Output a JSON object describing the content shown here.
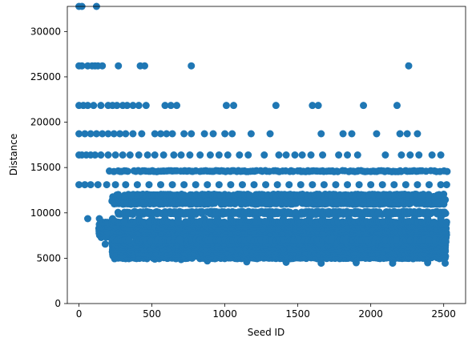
{
  "colors": {
    "marker": "#1f77b4",
    "axes": "#000000",
    "background": "#ffffff"
  },
  "chart_data": {
    "type": "scatter",
    "title": "",
    "xlabel": "Seed ID",
    "ylabel": "Distance",
    "xlim": [
      -80,
      2650
    ],
    "ylim": [
      0,
      32768
    ],
    "x_ticks": [
      0,
      500,
      1000,
      1500,
      2000,
      2500
    ],
    "y_ticks": [
      0,
      5000,
      10000,
      15000,
      20000,
      25000,
      30000
    ],
    "grid": false,
    "legend": "none",
    "series": [
      {
        "seed_id_range": [
          0,
          2520
        ],
        "points": [
          [
            0,
            32768
          ],
          [
            20,
            32768
          ],
          [
            120,
            32768
          ],
          [
            0,
            26214
          ],
          [
            20,
            26214
          ],
          [
            60,
            26214
          ],
          [
            90,
            26214
          ],
          [
            110,
            26214
          ],
          [
            130,
            26214
          ],
          [
            160,
            26214
          ],
          [
            270,
            26214
          ],
          [
            420,
            26214
          ],
          [
            450,
            26214
          ],
          [
            770,
            26214
          ],
          [
            2260,
            26214
          ],
          [
            0,
            21845
          ],
          [
            30,
            21845
          ],
          [
            60,
            21845
          ],
          [
            100,
            21845
          ],
          [
            150,
            21845
          ],
          [
            200,
            21845
          ],
          [
            230,
            21845
          ],
          [
            260,
            21845
          ],
          [
            300,
            21845
          ],
          [
            330,
            21845
          ],
          [
            370,
            21845
          ],
          [
            410,
            21845
          ],
          [
            460,
            21845
          ],
          [
            590,
            21845
          ],
          [
            630,
            21845
          ],
          [
            670,
            21845
          ],
          [
            1010,
            21845
          ],
          [
            1060,
            21845
          ],
          [
            1350,
            21845
          ],
          [
            1600,
            21845
          ],
          [
            1640,
            21845
          ],
          [
            1950,
            21845
          ],
          [
            2180,
            21845
          ],
          [
            0,
            18725
          ],
          [
            40,
            18725
          ],
          [
            80,
            18725
          ],
          [
            120,
            18725
          ],
          [
            160,
            18725
          ],
          [
            200,
            18725
          ],
          [
            240,
            18725
          ],
          [
            280,
            18725
          ],
          [
            320,
            18725
          ],
          [
            370,
            18725
          ],
          [
            430,
            18725
          ],
          [
            520,
            18725
          ],
          [
            560,
            18725
          ],
          [
            600,
            18725
          ],
          [
            640,
            18725
          ],
          [
            720,
            18725
          ],
          [
            770,
            18725
          ],
          [
            860,
            18725
          ],
          [
            920,
            18725
          ],
          [
            1000,
            18725
          ],
          [
            1050,
            18725
          ],
          [
            1180,
            18725
          ],
          [
            1310,
            18725
          ],
          [
            1660,
            18725
          ],
          [
            1810,
            18725
          ],
          [
            1870,
            18725
          ],
          [
            2040,
            18725
          ],
          [
            2200,
            18725
          ],
          [
            2250,
            18725
          ],
          [
            2320,
            18725
          ],
          [
            0,
            16384
          ],
          [
            20,
            16384
          ],
          [
            50,
            16384
          ],
          [
            80,
            16384
          ],
          [
            110,
            16384
          ],
          [
            150,
            16384
          ],
          [
            200,
            16384
          ],
          [
            250,
            16384
          ],
          [
            300,
            16384
          ],
          [
            350,
            16384
          ],
          [
            410,
            16384
          ],
          [
            470,
            16384
          ],
          [
            520,
            16384
          ],
          [
            580,
            16384
          ],
          [
            650,
            16384
          ],
          [
            700,
            16384
          ],
          [
            760,
            16384
          ],
          [
            830,
            16384
          ],
          [
            900,
            16384
          ],
          [
            960,
            16384
          ],
          [
            1020,
            16384
          ],
          [
            1100,
            16384
          ],
          [
            1160,
            16384
          ],
          [
            1270,
            16384
          ],
          [
            1370,
            16384
          ],
          [
            1420,
            16384
          ],
          [
            1480,
            16384
          ],
          [
            1530,
            16384
          ],
          [
            1590,
            16384
          ],
          [
            1670,
            16384
          ],
          [
            1780,
            16384
          ],
          [
            1840,
            16384
          ],
          [
            1910,
            16384
          ],
          [
            2100,
            16384
          ],
          [
            2210,
            16384
          ],
          [
            2270,
            16384
          ],
          [
            2330,
            16384
          ],
          [
            2420,
            16384
          ],
          [
            2480,
            16384
          ],
          [
            0,
            13107
          ],
          [
            40,
            13107
          ],
          [
            80,
            13107
          ],
          [
            130,
            13107
          ],
          [
            190,
            13107
          ],
          [
            250,
            13107
          ],
          [
            320,
            13107
          ],
          [
            400,
            13107
          ],
          [
            480,
            13107
          ],
          [
            560,
            13107
          ],
          [
            640,
            13107
          ],
          [
            720,
            13107
          ],
          [
            800,
            13107
          ],
          [
            880,
            13107
          ],
          [
            960,
            13107
          ],
          [
            1040,
            13107
          ],
          [
            1120,
            13107
          ],
          [
            1200,
            13107
          ],
          [
            1280,
            13107
          ],
          [
            1360,
            13107
          ],
          [
            1440,
            13107
          ],
          [
            1520,
            13107
          ],
          [
            1600,
            13107
          ],
          [
            1680,
            13107
          ],
          [
            1760,
            13107
          ],
          [
            1840,
            13107
          ],
          [
            1920,
            13107
          ],
          [
            2000,
            13107
          ],
          [
            2080,
            13107
          ],
          [
            2160,
            13107
          ],
          [
            2240,
            13107
          ],
          [
            2320,
            13107
          ],
          [
            2400,
            13107
          ],
          [
            2480,
            13107
          ],
          [
            2520,
            13107
          ],
          [
            60,
            9362
          ],
          [
            140,
            9362
          ],
          [
            230,
            9362
          ],
          [
            320,
            9362
          ],
          [
            410,
            9362
          ],
          [
            500,
            9362
          ],
          [
            590,
            9362
          ],
          [
            680,
            9362
          ],
          [
            770,
            9362
          ],
          [
            860,
            9362
          ],
          [
            950,
            9362
          ],
          [
            1040,
            9362
          ],
          [
            1130,
            9362
          ],
          [
            1220,
            9362
          ],
          [
            1310,
            9362
          ],
          [
            1400,
            9362
          ],
          [
            1490,
            9362
          ],
          [
            1580,
            9362
          ],
          [
            1670,
            9362
          ],
          [
            1760,
            9362
          ],
          [
            1850,
            9362
          ],
          [
            1940,
            9362
          ],
          [
            2030,
            9362
          ],
          [
            2120,
            9362
          ],
          [
            2210,
            9362
          ],
          [
            2300,
            9362
          ],
          [
            2390,
            9362
          ],
          [
            2480,
            9362
          ],
          [
            180,
            6554
          ],
          [
            280,
            6554
          ],
          [
            380,
            6554
          ],
          [
            480,
            6554
          ],
          [
            580,
            6554
          ],
          [
            680,
            6554
          ],
          [
            780,
            6554
          ],
          [
            880,
            6554
          ],
          [
            980,
            6554
          ],
          [
            1080,
            6554
          ],
          [
            1180,
            6554
          ],
          [
            1280,
            6554
          ],
          [
            1380,
            6554
          ],
          [
            1480,
            6554
          ],
          [
            1580,
            6554
          ],
          [
            1680,
            6554
          ],
          [
            1780,
            6554
          ],
          [
            1880,
            6554
          ],
          [
            1980,
            6554
          ],
          [
            2080,
            6554
          ],
          [
            2180,
            6554
          ],
          [
            2280,
            6554
          ],
          [
            2380,
            6554
          ],
          [
            2480,
            6554
          ],
          [
            320,
            4950
          ],
          [
            520,
            4900
          ],
          [
            700,
            4850
          ],
          [
            880,
            4700
          ],
          [
            1150,
            4600
          ],
          [
            1420,
            4550
          ],
          [
            1660,
            4450
          ],
          [
            1900,
            4500
          ],
          [
            2150,
            4450
          ],
          [
            2390,
            4500
          ],
          [
            2510,
            4450
          ]
        ]
      }
    ],
    "bands": [
      {
        "y_min": 14600,
        "y_max": 14600,
        "x_min": 210,
        "x_max": 2520
      },
      {
        "y_min": 11000,
        "y_max": 12000,
        "x_min": 230,
        "x_max": 2520
      },
      {
        "y_min": 9900,
        "y_max": 10100,
        "x_min": 270,
        "x_max": 2520
      },
      {
        "y_min": 7300,
        "y_max": 9000,
        "x_min": 140,
        "x_max": 2520
      },
      {
        "y_min": 5000,
        "y_max": 7000,
        "x_min": 230,
        "x_max": 2520
      }
    ]
  }
}
